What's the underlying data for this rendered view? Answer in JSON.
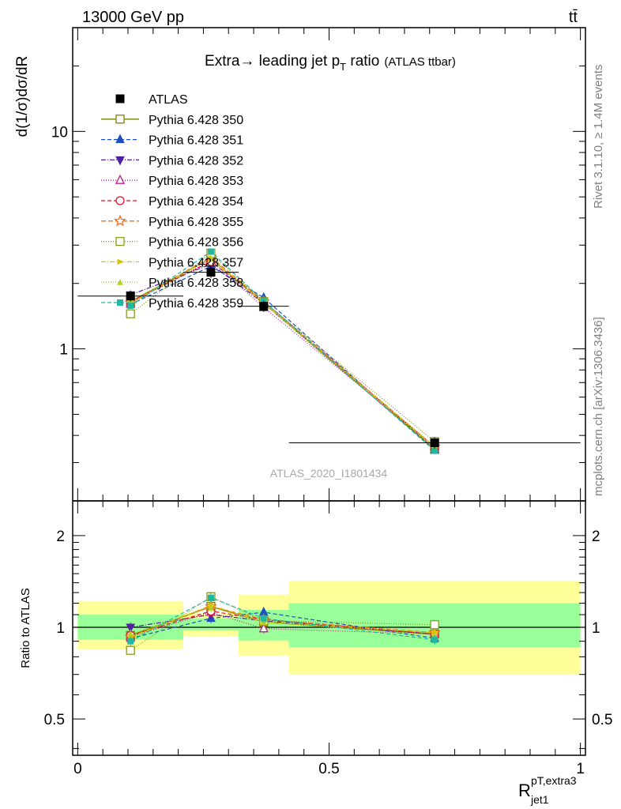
{
  "header": {
    "left": "13000 GeV pp",
    "right": "tt̄"
  },
  "side_labels": {
    "rivet": "Rivet 3.1.10, ≥ 1.4M events",
    "mcplots": "mcplots.cern.ch [arXiv:1306.3436]"
  },
  "chart_data": [
    {
      "type": "line",
      "panel": "main",
      "title_main": "Extra→ leading jet p",
      "title_sub": "T",
      "title_tail": " ratio",
      "title_small": "(ATLAS ttbar)",
      "watermark": "ATLAS_2020_I1801434",
      "ylabel": "d(1/σ)dσ/dR",
      "log_y": true,
      "xlim": [
        -0.01,
        1.01
      ],
      "ylim": [
        0.2,
        30
      ],
      "yticks": [
        {
          "v": 1,
          "label": "1"
        },
        {
          "v": 10,
          "label": "10"
        }
      ],
      "x": [
        0.105,
        0.265,
        0.37,
        0.71
      ],
      "x_bins": [
        [
          0,
          0.21
        ],
        [
          0.21,
          0.32
        ],
        [
          0.32,
          0.42
        ],
        [
          0.42,
          1.0
        ]
      ],
      "series": [
        {
          "name": "ATLAS",
          "color": "#000000",
          "marker": "square-filled",
          "dash": "",
          "values": [
            1.75,
            2.25,
            1.57,
            0.37
          ]
        },
        {
          "name": "Pythia 6.428 350",
          "color": "#808000",
          "marker": "square-open",
          "dash": "",
          "values": [
            1.65,
            2.6,
            1.62,
            0.345
          ]
        },
        {
          "name": "Pythia 6.428 351",
          "color": "#1f4fbf",
          "marker": "triangle-up",
          "dash": "5,3",
          "values": [
            1.6,
            2.4,
            1.72,
            0.345
          ]
        },
        {
          "name": "Pythia 6.428 352",
          "color": "#5020a0",
          "marker": "triangle-down",
          "dash": "6,2,1,2",
          "values": [
            1.77,
            2.45,
            1.62,
            0.355
          ]
        },
        {
          "name": "Pythia 6.428 353",
          "color": "#c0208a",
          "marker": "triangle-open",
          "dash": "1,2",
          "values": [
            1.62,
            2.55,
            1.55,
            0.355
          ]
        },
        {
          "name": "Pythia 6.428 354",
          "color": "#e0102a",
          "marker": "circle-open",
          "dash": "5,3",
          "values": [
            1.65,
            2.52,
            1.65,
            0.352
          ]
        },
        {
          "name": "Pythia 6.428 355",
          "color": "#f07020",
          "marker": "star-open",
          "dash": "6,3",
          "values": [
            1.63,
            2.65,
            1.65,
            0.355
          ]
        },
        {
          "name": "Pythia 6.428 356",
          "color": "#8a9a1a",
          "marker": "square-open",
          "dash": "1,2",
          "values": [
            1.45,
            2.75,
            1.65,
            0.375
          ]
        },
        {
          "name": "Pythia 6.428 357",
          "color": "#d8c400",
          "marker": "tri-right",
          "dash": "6,2,1,2",
          "values": [
            1.62,
            2.62,
            1.62,
            0.355
          ]
        },
        {
          "name": "Pythia 6.428 358",
          "color": "#b8d020",
          "marker": "tri-small",
          "dash": "1,2",
          "values": [
            1.67,
            2.6,
            1.62,
            0.35
          ]
        },
        {
          "name": "Pythia 6.428 359",
          "color": "#20b8a0",
          "marker": "square-small",
          "dash": "5,3",
          "values": [
            1.58,
            2.8,
            1.66,
            0.34
          ]
        }
      ]
    },
    {
      "type": "line",
      "panel": "ratio",
      "ylabel": "Ratio to ATLAS",
      "log_y": true,
      "xlim": [
        -0.01,
        1.01
      ],
      "ylim": [
        0.38,
        2.6
      ],
      "yticks": [
        {
          "v": 0.5,
          "label": "0.5"
        },
        {
          "v": 1,
          "label": "1"
        },
        {
          "v": 2,
          "label": "2"
        }
      ],
      "xticks": [
        {
          "v": 0,
          "label": "0"
        },
        {
          "v": 0.5,
          "label": "0.5"
        },
        {
          "v": 1,
          "label": "1"
        }
      ],
      "xlabel_main": "R",
      "xlabel_sup": "pT,extra3",
      "xlabel_sub": "jet1",
      "bands": [
        {
          "x0": 0.0,
          "x1": 0.21,
          "green": [
            0.91,
            1.1
          ],
          "yellow": [
            0.845,
            1.22
          ]
        },
        {
          "x0": 0.21,
          "x1": 0.32,
          "green": [
            0.975,
            1.07
          ],
          "yellow": [
            0.935,
            1.11
          ]
        },
        {
          "x0": 0.32,
          "x1": 0.42,
          "green": [
            0.905,
            1.14
          ],
          "yellow": [
            0.805,
            1.28
          ]
        },
        {
          "x0": 0.42,
          "x1": 1.0,
          "green": [
            0.86,
            1.2
          ],
          "yellow": [
            0.7,
            1.42
          ]
        }
      ],
      "series": [
        {
          "name": "Pythia 6.428 350",
          "color": "#808000",
          "values": [
            0.94,
            1.17,
            1.04,
            0.95
          ]
        },
        {
          "name": "Pythia 6.428 351",
          "color": "#1f4fbf",
          "values": [
            0.92,
            1.07,
            1.12,
            0.92
          ]
        },
        {
          "name": "Pythia 6.428 352",
          "color": "#5020a0",
          "values": [
            1.0,
            1.1,
            1.05,
            0.95
          ]
        },
        {
          "name": "Pythia 6.428 353",
          "color": "#c0208a",
          "values": [
            0.93,
            1.12,
            0.99,
            0.95
          ]
        },
        {
          "name": "Pythia 6.428 354",
          "color": "#e0102a",
          "values": [
            0.94,
            1.13,
            1.06,
            0.95
          ]
        },
        {
          "name": "Pythia 6.428 355",
          "color": "#f07020",
          "values": [
            0.93,
            1.17,
            1.06,
            0.96
          ]
        },
        {
          "name": "Pythia 6.428 356",
          "color": "#8a9a1a",
          "values": [
            0.84,
            1.26,
            1.05,
            1.02
          ]
        },
        {
          "name": "Pythia 6.428 357",
          "color": "#d8c400",
          "values": [
            0.93,
            1.18,
            1.04,
            0.96
          ]
        },
        {
          "name": "Pythia 6.428 358",
          "color": "#b8d020",
          "values": [
            0.95,
            1.16,
            1.04,
            0.94
          ]
        },
        {
          "name": "Pythia 6.428 359",
          "color": "#20b8a0",
          "values": [
            0.9,
            1.25,
            1.07,
            0.91
          ]
        }
      ]
    }
  ]
}
